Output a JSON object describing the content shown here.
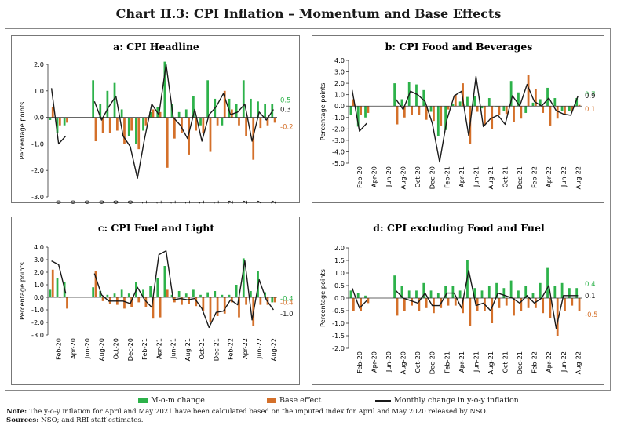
{
  "title": "Chart II.3: CPI Inflation – Momentum and Base Effects",
  "colors": {
    "mom": "#2db24a",
    "base": "#d4702a",
    "line": "#1a1a1a",
    "frame": "#777777"
  },
  "legend": {
    "mom": "M-o-m change",
    "base": "Base effect",
    "line": "Monthly change in y-o-y inflation"
  },
  "note": {
    "label": "Note:",
    "text": " The y-o-y inflation for April and May 2021 have been calculated based on the imputed index for April and May 2020 released by NSO."
  },
  "sources": {
    "label": "Sources:",
    "text": " NSO; and RBI staff estimates."
  },
  "chart_data": [
    {
      "type": "bar",
      "title": "a: CPI Headline",
      "ylabel": "Percentage points",
      "ylim": [
        -3,
        2
      ],
      "ystep": 1,
      "ytick_labels": [
        "2.0",
        "1.0",
        "0.0",
        "-1.0",
        "-2.0",
        "-3.0"
      ],
      "xtick_labels": [
        "Feb-20",
        "Apr-20",
        "Jun-20",
        "Aug-20",
        "Oct-20",
        "Dec-20",
        "Feb-21",
        "Apr-21",
        "Jun-21",
        "Aug-21",
        "Oct-21",
        "Dec-21",
        "Feb-22",
        "Apr-22",
        "Jun-22",
        "Aug-22"
      ],
      "xtick_index": [
        1,
        3,
        5,
        7,
        9,
        11,
        13,
        15,
        17,
        19,
        21,
        23,
        25,
        27,
        29,
        31
      ],
      "end_labels": [
        {
          "text": "0.5",
          "series": "mom"
        },
        {
          "text": "0.3",
          "series": "line"
        },
        {
          "text": "-0.2",
          "series": "base"
        }
      ],
      "series": [
        {
          "name": "M-o-m change",
          "key": "mom",
          "values": [
            -0.1,
            -0.6,
            -0.3,
            null,
            null,
            null,
            1.4,
            0.5,
            1.0,
            1.3,
            0.3,
            -0.7,
            -1.0,
            -0.5,
            0.2,
            0.4,
            2.1,
            0.5,
            0.2,
            0.3,
            0.8,
            -0.3,
            1.4,
            0.7,
            -0.3,
            0.7,
            0.5,
            1.4,
            0.7,
            0.6,
            0.5,
            0.5
          ]
        },
        {
          "name": "Base effect",
          "key": "base",
          "values": [
            0.4,
            -0.3,
            -0.2,
            null,
            null,
            null,
            -0.9,
            -0.6,
            -0.6,
            -0.5,
            -1.0,
            -0.5,
            -1.2,
            -0.3,
            0.3,
            0.2,
            -1.9,
            -0.8,
            -0.6,
            -1.4,
            -0.5,
            -0.6,
            -1.3,
            -0.3,
            1.0,
            0.3,
            -0.3,
            -0.7,
            -1.6,
            -0.4,
            -0.3,
            -0.2
          ]
        },
        {
          "name": "Monthly change in y-o-y inflation",
          "key": "line",
          "values": [
            1.1,
            -1.0,
            -0.7,
            null,
            null,
            null,
            0.6,
            -0.1,
            0.4,
            0.8,
            -0.7,
            -1.1,
            -2.3,
            -0.8,
            0.5,
            0.1,
            2.0,
            0.0,
            -0.3,
            -0.8,
            0.3,
            -0.9,
            0.1,
            0.4,
            0.9,
            0.1,
            0.2,
            0.5,
            -0.9,
            0.2,
            -0.1,
            0.3
          ]
        }
      ]
    },
    {
      "type": "bar",
      "title": "b: CPI Food and Beverages",
      "ylabel": "Percentage points",
      "ylim": [
        -5,
        4
      ],
      "ystep": 1,
      "ytick_labels": [
        "4.0",
        "3.0",
        "2.0",
        "1.0",
        "0.0",
        "-1.0",
        "-2.0",
        "-3.0",
        "-4.0",
        "-5.0"
      ],
      "xtick_labels": [
        "Feb-20",
        "Apr-20",
        "Jun-20",
        "Aug-20",
        "Oct-20",
        "Dec-20",
        "Feb-21",
        "Apr-21",
        "Jun-21",
        "Aug-21",
        "Oct-21",
        "Dec-21",
        "Feb-22",
        "Apr-22",
        "Jun-22",
        "Aug-22"
      ],
      "xtick_index": [
        1,
        3,
        5,
        7,
        9,
        11,
        13,
        15,
        17,
        19,
        21,
        23,
        25,
        27,
        29,
        31
      ],
      "end_labels": [
        {
          "text": "0.7",
          "series": "mom"
        },
        {
          "text": "0.9",
          "series": "line"
        },
        {
          "text": "0.1",
          "series": "base"
        }
      ],
      "series": [
        {
          "name": "M-o-m change",
          "key": "mom",
          "values": [
            -0.8,
            -1.8,
            -1.0,
            null,
            null,
            null,
            2.0,
            0.6,
            2.1,
            1.9,
            1.4,
            -0.5,
            -2.6,
            -2.1,
            0.2,
            0.4,
            0.8,
            0.9,
            -0.2,
            0.7,
            0.0,
            -0.4,
            2.2,
            1.2,
            -0.6,
            0.3,
            0.6,
            1.6,
            0.7,
            -0.4,
            -0.4,
            0.7
          ]
        },
        {
          "name": "Base effect",
          "key": "base",
          "values": [
            0.6,
            -0.8,
            -0.6,
            null,
            null,
            null,
            -1.6,
            -1.0,
            -0.8,
            -0.8,
            -1.2,
            -1.3,
            -1.7,
            -0.3,
            1.0,
            2.0,
            -3.3,
            -0.5,
            -1.6,
            -2.0,
            -0.8,
            -0.7,
            -1.4,
            -1.1,
            2.7,
            1.5,
            -0.6,
            -1.7,
            -1.1,
            -0.8,
            -0.4,
            0.1
          ]
        },
        {
          "name": "Monthly change in y-o-y inflation",
          "key": "line",
          "values": [
            1.4,
            -2.2,
            -1.5,
            null,
            null,
            null,
            0.6,
            -0.3,
            1.3,
            1.0,
            0.4,
            -1.5,
            -4.9,
            -1.2,
            0.9,
            1.3,
            -2.6,
            2.6,
            -1.8,
            -1.1,
            -0.8,
            -1.6,
            0.9,
            0.0,
            1.9,
            0.4,
            0.0,
            0.7,
            -0.4,
            -0.7,
            -0.8,
            0.9
          ]
        }
      ]
    },
    {
      "type": "bar",
      "title": "c: CPI Fuel and Light",
      "ylabel": "Percentage points",
      "ylim": [
        -3,
        4
      ],
      "ystep": 1,
      "ytick_labels": [
        "4.0",
        "3.0",
        "2.0",
        "1.0",
        "0.0",
        "-1.0",
        "-2.0",
        "-3.0"
      ],
      "xtick_labels": [
        "Feb-20",
        "Apr-20",
        "Jun-20",
        "Aug-20",
        "Oct-20",
        "Dec-20",
        "Feb-21",
        "Apr-21",
        "Jun-21",
        "Aug-21",
        "Oct-21",
        "Dec-21",
        "Feb-22",
        "Apr-22",
        "Jun-22",
        "Aug-22"
      ],
      "xtick_index": [
        1,
        3,
        5,
        7,
        9,
        11,
        13,
        15,
        17,
        19,
        21,
        23,
        25,
        27,
        29,
        31
      ],
      "end_labels": [
        {
          "text": "-0.4",
          "series": "mom"
        },
        {
          "text": "-0.4",
          "series": "base"
        },
        {
          "text": "-1.0",
          "series": "line"
        }
      ],
      "series": [
        {
          "name": "M-o-m change",
          "key": "mom",
          "values": [
            0.6,
            1.5,
            1.2,
            null,
            null,
            null,
            0.8,
            0.5,
            0.2,
            0.3,
            0.6,
            0.3,
            1.2,
            0.6,
            0.9,
            1.5,
            2.5,
            0.2,
            0.5,
            0.3,
            0.6,
            0.2,
            0.4,
            0.5,
            0.2,
            0.2,
            1.0,
            3.1,
            0.5,
            2.1,
            0.4,
            -0.4
          ]
        },
        {
          "name": "Base effect",
          "key": "base",
          "values": [
            2.2,
            0.0,
            -0.9,
            null,
            null,
            null,
            2.1,
            -0.3,
            -0.5,
            -0.6,
            -0.9,
            -0.8,
            -0.4,
            -0.8,
            -1.7,
            -1.6,
            0.6,
            -0.4,
            -0.6,
            -0.5,
            -0.7,
            -1.1,
            -2.0,
            -1.5,
            -1.3,
            -0.4,
            -1.6,
            -0.6,
            -2.3,
            -0.6,
            -0.6,
            -0.4
          ]
        },
        {
          "name": "Monthly change in y-o-y inflation",
          "key": "line",
          "values": [
            2.9,
            2.6,
            0.3,
            null,
            null,
            null,
            1.9,
            0.2,
            -0.3,
            -0.3,
            -0.3,
            -0.5,
            0.8,
            -0.2,
            -0.8,
            3.4,
            3.7,
            -0.2,
            -0.1,
            -0.2,
            -0.1,
            -0.9,
            -2.4,
            -1.2,
            -1.1,
            -0.2,
            -0.6,
            2.9,
            -1.8,
            1.4,
            -0.2,
            -1.0
          ]
        }
      ]
    },
    {
      "type": "bar",
      "title": "d: CPI excluding Food and Fuel",
      "ylabel": "Percentage points",
      "ylim": [
        -2,
        2
      ],
      "ystep": 0.5,
      "ytick_labels": [
        "2.0",
        "1.5",
        "1.0",
        "0.5",
        "0.0",
        "-0.5",
        "-1.0",
        "-1.5",
        "-2.0"
      ],
      "xtick_labels": [
        "Feb-20",
        "Apr-20",
        "Jun-20",
        "Aug-20",
        "Oct-20",
        "Dec-20",
        "Feb-21",
        "Apr-21",
        "Jun-21",
        "Aug-21",
        "Oct-21",
        "Dec-21",
        "Feb-22",
        "Apr-22",
        "Jun-22",
        "Aug-22"
      ],
      "xtick_index": [
        1,
        3,
        5,
        7,
        9,
        11,
        13,
        15,
        17,
        19,
        21,
        23,
        25,
        27,
        29,
        31
      ],
      "end_labels": [
        {
          "text": "0.4",
          "series": "mom"
        },
        {
          "text": "0.1",
          "series": "line"
        },
        {
          "text": "-0.5",
          "series": "base"
        }
      ],
      "series": [
        {
          "name": "M-o-m change",
          "key": "mom",
          "values": [
            0.3,
            0.2,
            0.1,
            null,
            null,
            null,
            0.9,
            0.5,
            0.3,
            0.3,
            0.6,
            0.3,
            0.2,
            0.5,
            0.5,
            0.3,
            1.5,
            0.4,
            0.3,
            0.5,
            0.6,
            0.4,
            0.7,
            0.3,
            0.5,
            0.2,
            0.6,
            1.2,
            0.5,
            0.6,
            0.4,
            0.4
          ]
        },
        {
          "name": "Base effect",
          "key": "base",
          "values": [
            -0.5,
            -0.5,
            -0.2,
            null,
            null,
            null,
            -0.7,
            -0.5,
            -0.3,
            -0.5,
            -0.4,
            -0.6,
            -0.4,
            -0.3,
            -0.3,
            -0.6,
            -1.1,
            -0.5,
            -0.5,
            -1.0,
            -0.4,
            -0.3,
            -0.7,
            -0.5,
            -0.4,
            -0.4,
            -0.6,
            -0.8,
            -1.5,
            -0.5,
            -0.3,
            -0.5
          ]
        },
        {
          "name": "Monthly change in y-o-y inflation",
          "key": "line",
          "values": [
            0.4,
            -0.4,
            -0.1,
            null,
            null,
            null,
            0.3,
            0.0,
            -0.1,
            -0.2,
            0.2,
            -0.3,
            -0.3,
            0.2,
            0.2,
            -0.4,
            1.1,
            -0.3,
            -0.2,
            -0.5,
            0.2,
            0.1,
            0.0,
            -0.2,
            0.1,
            -0.2,
            0.0,
            0.5,
            -1.2,
            0.1,
            0.1,
            0.1
          ]
        }
      ]
    }
  ]
}
